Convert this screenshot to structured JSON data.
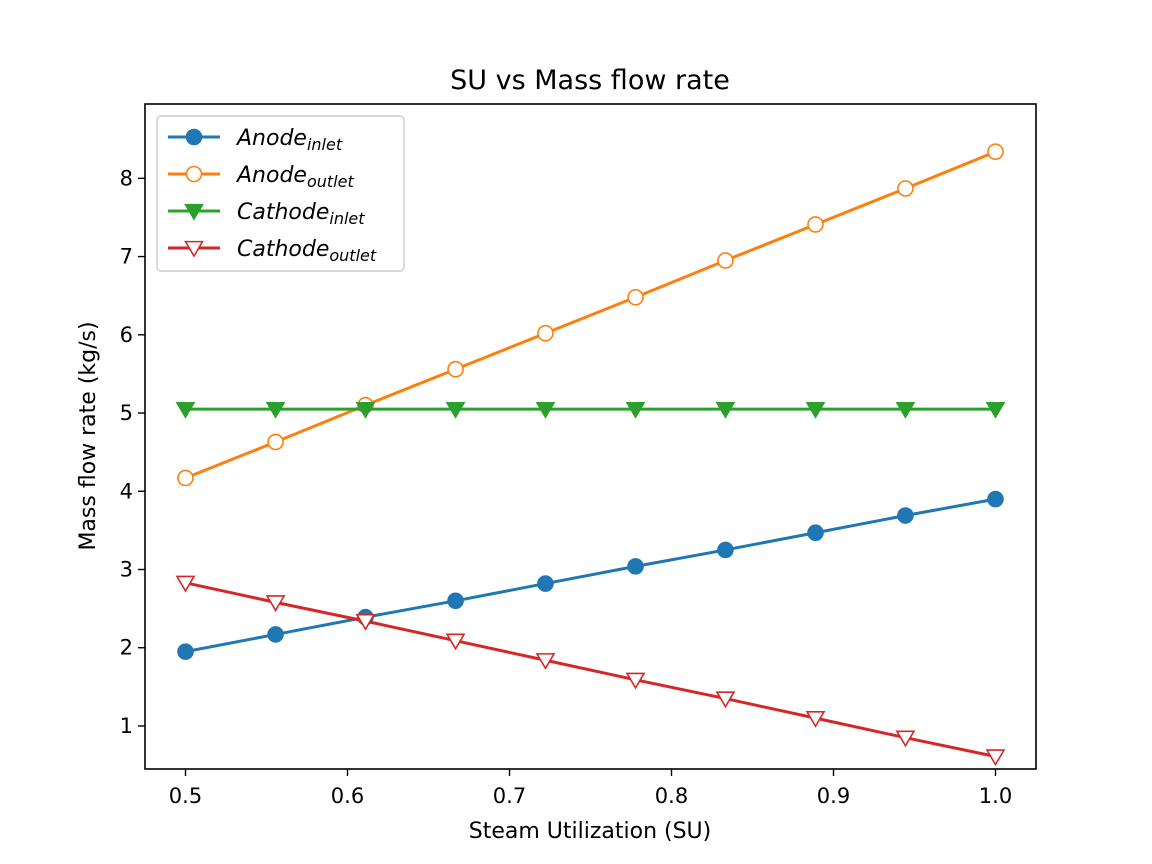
{
  "chart_data": {
    "type": "line",
    "title": "SU vs Mass flow rate",
    "xlabel": "Steam Utilization (SU)",
    "ylabel": "Mass flow rate (kg/s)",
    "xlim": [
      0.475,
      1.025
    ],
    "ylim": [
      0.45,
      8.95
    ],
    "xticks": [
      "0.5",
      "0.6",
      "0.7",
      "0.8",
      "0.9",
      "1.0"
    ],
    "yticks": [
      "1",
      "2",
      "3",
      "4",
      "5",
      "6",
      "7",
      "8"
    ],
    "grid": false,
    "legend_position": "upper-left",
    "x": [
      0.5,
      0.5556,
      0.6111,
      0.6667,
      0.7222,
      0.7778,
      0.8333,
      0.8889,
      0.9444,
      1.0
    ],
    "series": [
      {
        "name": "Anode",
        "subscript": "inlet",
        "color": "#1f77b4",
        "marker": "circle-filled",
        "values": [
          1.95,
          2.17,
          2.39,
          2.6,
          2.82,
          3.04,
          3.25,
          3.47,
          3.69,
          3.9
        ]
      },
      {
        "name": "Anode",
        "subscript": "outlet",
        "color": "#ff7f0e",
        "marker": "circle-open",
        "values": [
          4.17,
          4.63,
          5.1,
          5.56,
          6.02,
          6.48,
          6.95,
          7.41,
          7.87,
          8.34
        ]
      },
      {
        "name": "Cathode",
        "subscript": "inlet",
        "color": "#2ca02c",
        "marker": "triangle-down-filled",
        "values": [
          5.05,
          5.05,
          5.05,
          5.05,
          5.05,
          5.05,
          5.05,
          5.05,
          5.05,
          5.05
        ]
      },
      {
        "name": "Cathode",
        "subscript": "outlet",
        "color": "#d62728",
        "marker": "triangle-down-open",
        "values": [
          2.83,
          2.58,
          2.34,
          2.09,
          1.84,
          1.59,
          1.35,
          1.1,
          0.85,
          0.61
        ]
      }
    ]
  }
}
